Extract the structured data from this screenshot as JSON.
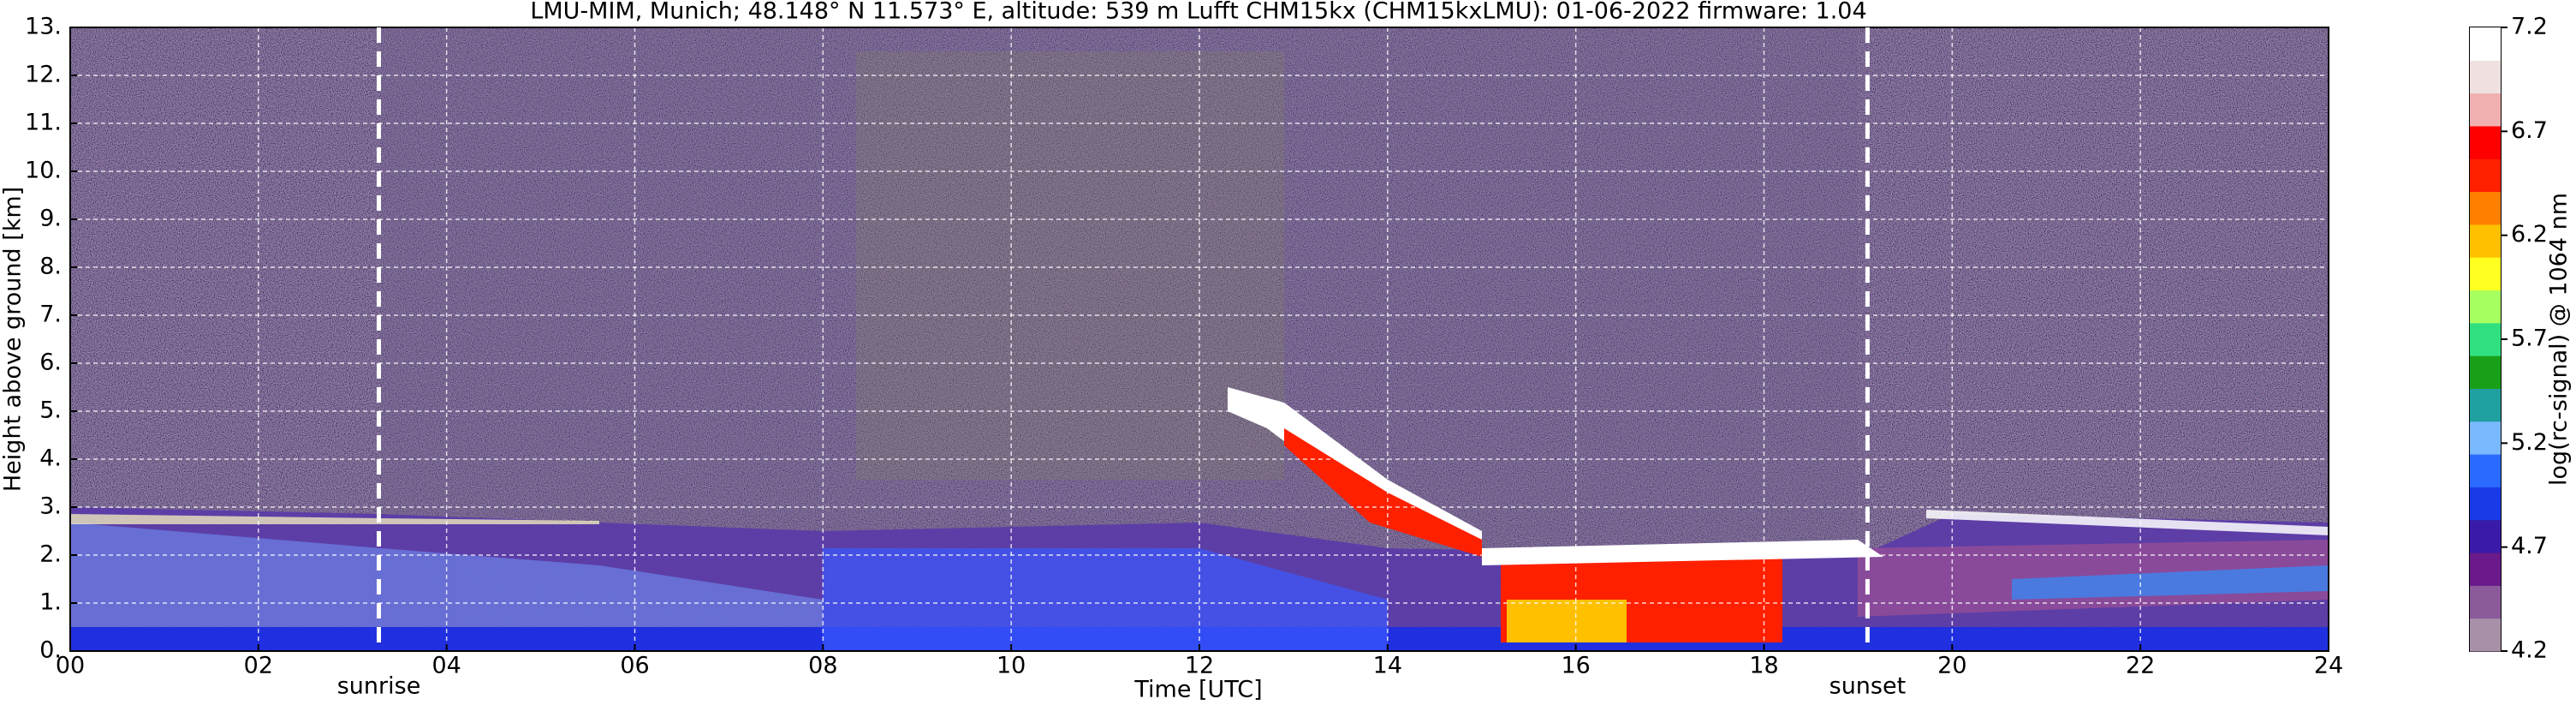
{
  "chart_data": {
    "type": "heatmap",
    "title": "LMU-MIM, Munich; 48.148° N 11.573° E, altitude: 539 m    Lufft CHM15kx (CHM15kxLMU): 01-06-2022    firmware: 1.04",
    "xlabel": "Time [UTC]",
    "ylabel": "Height above ground [km]",
    "colorbar_label": "log(rc-signal) @ 1064 nm",
    "xlim": [
      0,
      24
    ],
    "xticks": [
      {
        "value": 0,
        "label": "00"
      },
      {
        "value": 2,
        "label": "02"
      },
      {
        "value": 4,
        "label": "04"
      },
      {
        "value": 6,
        "label": "06"
      },
      {
        "value": 8,
        "label": "08"
      },
      10,
      12,
      14,
      16,
      18,
      20,
      22,
      24
    ],
    "ylim": [
      0,
      13
    ],
    "yticks": [
      {
        "value": 0,
        "label": "0."
      },
      {
        "value": 1,
        "label": "1."
      },
      {
        "value": 2,
        "label": "2."
      },
      {
        "value": 3,
        "label": "3."
      },
      {
        "value": 4,
        "label": "4."
      },
      {
        "value": 5,
        "label": "5."
      },
      {
        "value": 6,
        "label": "6."
      },
      {
        "value": 7,
        "label": "7."
      },
      {
        "value": 8,
        "label": "8."
      },
      {
        "value": 9,
        "label": "9."
      },
      {
        "value": 10,
        "label": "10."
      },
      {
        "value": 11,
        "label": "11."
      },
      {
        "value": 12,
        "label": "12."
      },
      {
        "value": 13,
        "label": "13."
      }
    ],
    "clim": [
      4.2,
      7.2
    ],
    "cticks": [
      4.2,
      4.7,
      5.2,
      5.7,
      6.2,
      6.7,
      7.2
    ],
    "colormap": [
      "#a891a8",
      "#8a5a9a",
      "#6a1a8a",
      "#3a1aa8",
      "#1a3ae8",
      "#2a6aff",
      "#7ab8ff",
      "#20a0a0",
      "#18a018",
      "#30e080",
      "#a8ff60",
      "#ffff20",
      "#ffc000",
      "#ff8000",
      "#ff2000",
      "#ff0000",
      "#f0b0b0",
      "#f0e0e0",
      "#ffffff"
    ],
    "grid": true,
    "annotations": [
      {
        "label": "sunrise",
        "x": 3.28
      },
      {
        "label": "sunset",
        "x": 19.1
      }
    ]
  }
}
